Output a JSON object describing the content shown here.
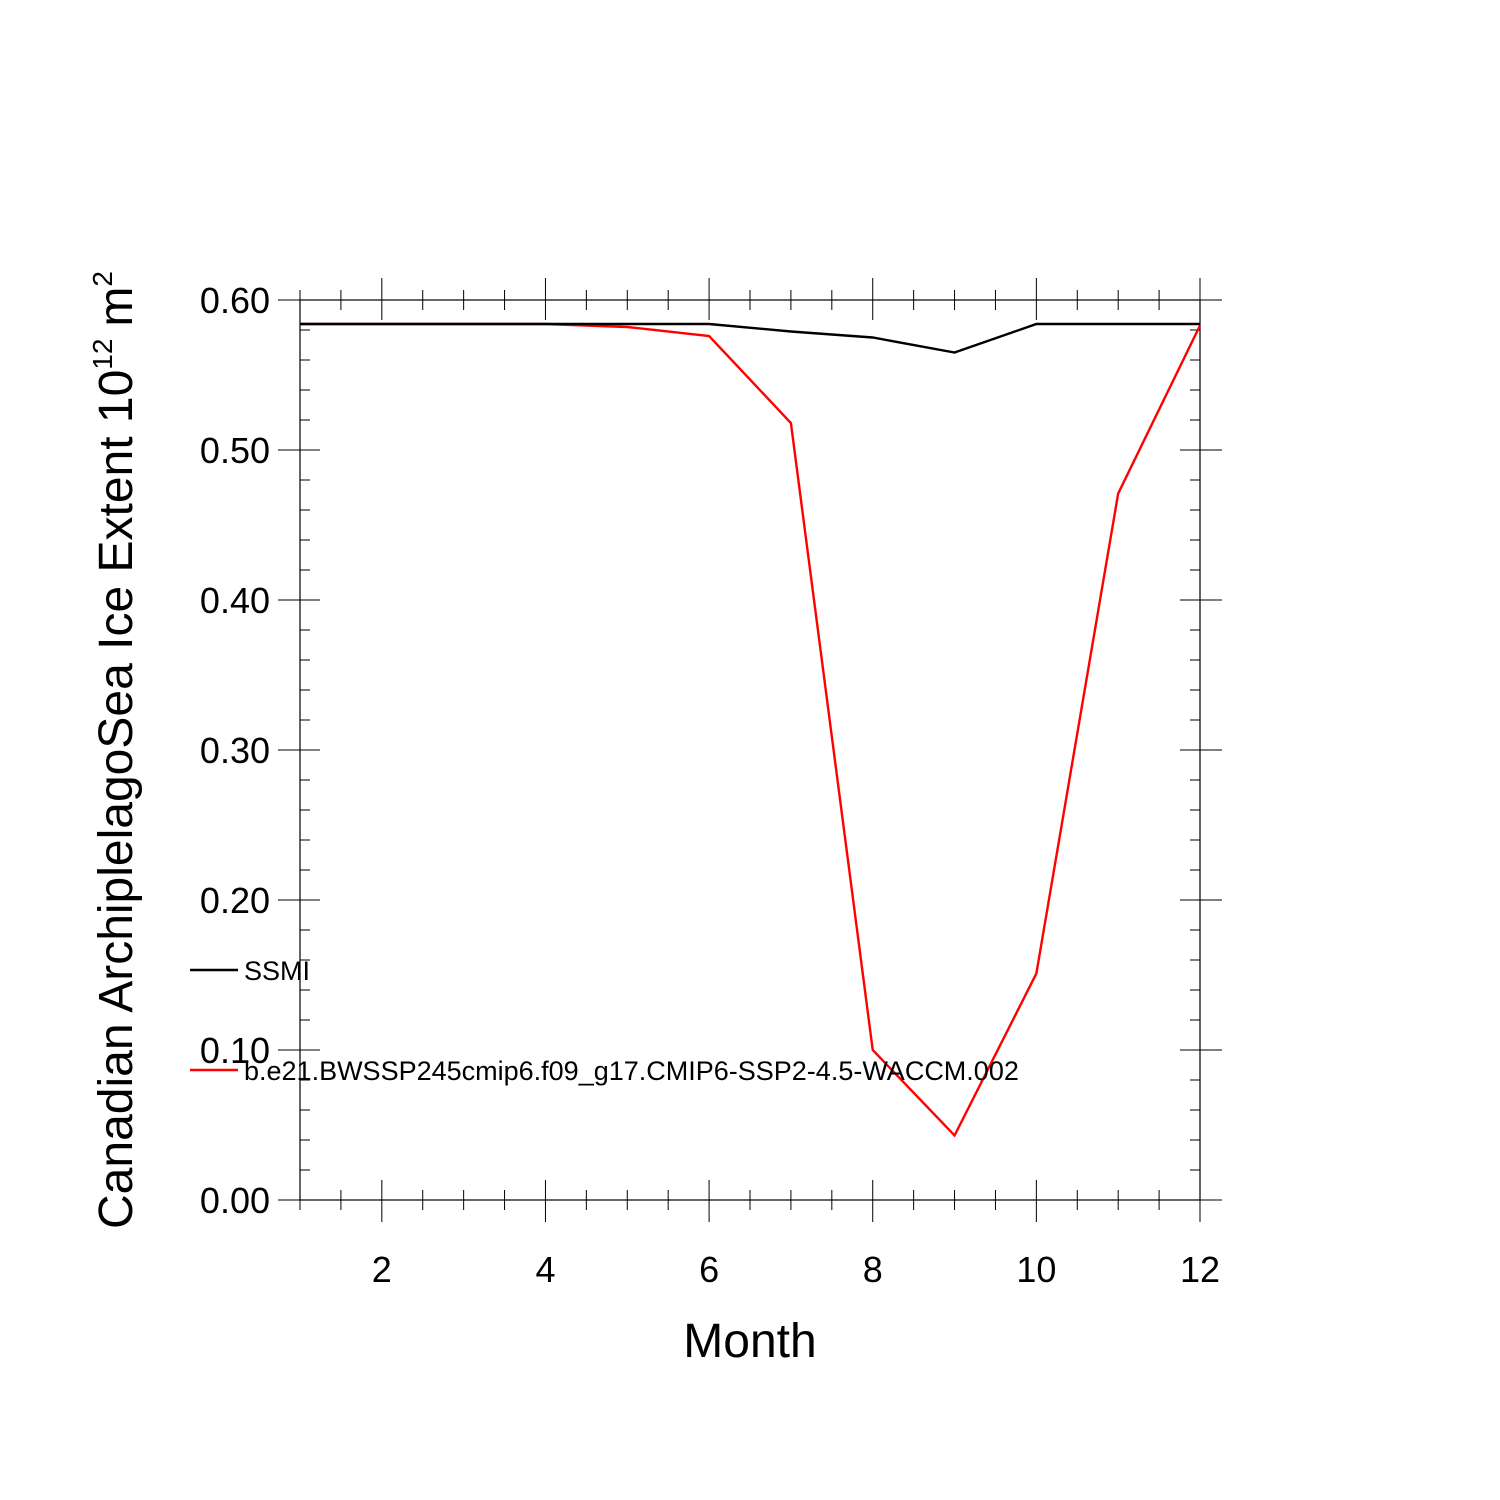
{
  "chart_data": {
    "type": "line",
    "xlabel": "Month",
    "ylabel": {
      "text": "Canadian ArchiplelagoSea Ice Extent 10",
      "exponent": "12",
      "unit": "m",
      "unit_exponent": "2"
    },
    "xlim": [
      1,
      12
    ],
    "ylim": [
      0,
      0.6
    ],
    "x_major_ticks": [
      2,
      4,
      6,
      8,
      10,
      12
    ],
    "x_tick_labels": [
      "2",
      "4",
      "6",
      "8",
      "10",
      "12"
    ],
    "y_major_ticks": [
      0,
      0.1,
      0.2,
      0.3,
      0.4,
      0.5,
      0.6
    ],
    "y_tick_labels": [
      "0.00",
      "0.10",
      "0.20",
      "0.30",
      "0.40",
      "0.50",
      "0.60"
    ],
    "grid": false,
    "legend_position": "lower-left",
    "x": [
      1,
      2,
      3,
      4,
      5,
      6,
      7,
      8,
      9,
      10,
      11,
      12
    ],
    "series": [
      {
        "name": "SSMI",
        "color": "#000000",
        "values": [
          0.584,
          0.584,
          0.584,
          0.584,
          0.584,
          0.584,
          0.579,
          0.575,
          0.565,
          0.584,
          0.584,
          0.584
        ]
      },
      {
        "name": "b.e21.BWSSP245cmip6.f09_g17.CMIP6-SSP2-4.5-WACCM.002",
        "color": "#ff0000",
        "values": [
          0.584,
          0.584,
          0.584,
          0.584,
          0.582,
          0.576,
          0.518,
          0.1,
          0.043,
          0.151,
          0.471,
          0.583
        ]
      }
    ]
  }
}
